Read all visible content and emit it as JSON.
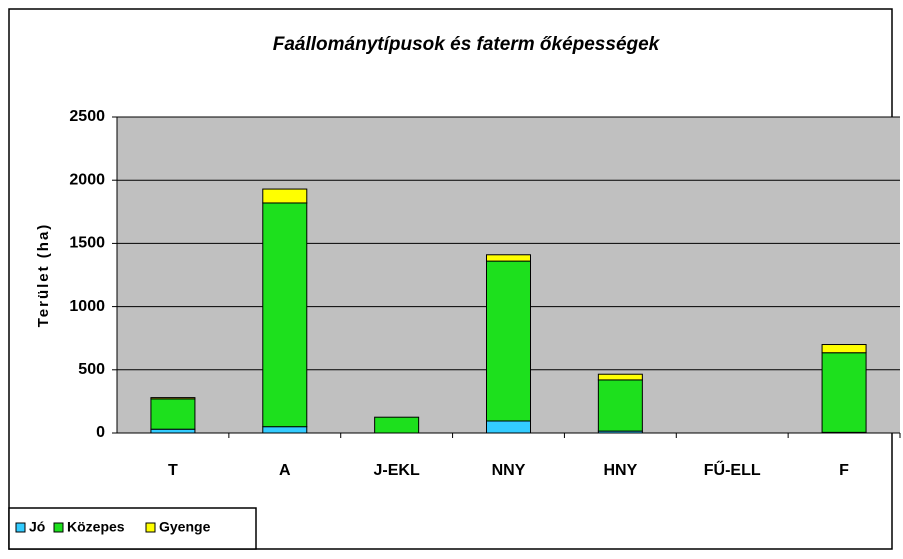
{
  "chart_data": {
    "type": "stacked_bar",
    "title": "Faállománytípusok és faterm őképességek",
    "y_label": "Terület (ha)",
    "categories": [
      "T",
      "A",
      "J-EKL",
      "NNY",
      "HNY",
      "FŰ-ELL",
      "F"
    ],
    "series": [
      {
        "name": "Jó",
        "color": "#33ccff",
        "values": [
          30,
          50,
          0,
          95,
          15,
          0,
          5
        ]
      },
      {
        "name": "Közepes",
        "color": "#1de01d",
        "values": [
          240,
          1770,
          125,
          1265,
          405,
          0,
          630
        ]
      },
      {
        "name": "Gyenge",
        "color": "#ffff00",
        "values": [
          10,
          110,
          0,
          50,
          45,
          0,
          65
        ]
      }
    ],
    "ylim": [
      0,
      2500
    ],
    "yticks": [
      0,
      500,
      1000,
      1500,
      2000,
      2500
    ],
    "grid": true
  }
}
